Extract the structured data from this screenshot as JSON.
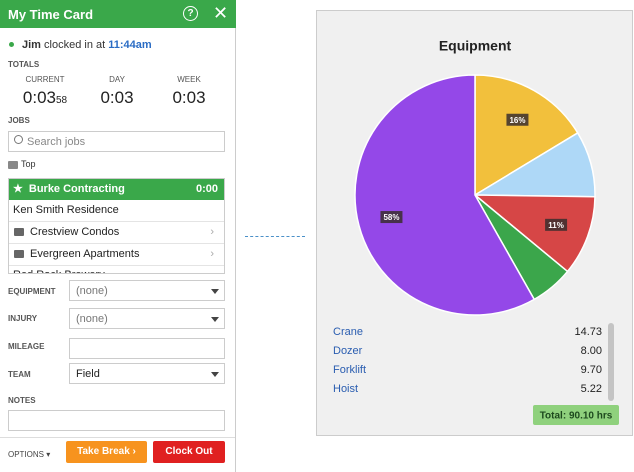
{
  "header": {
    "title": "My Time Card"
  },
  "status": {
    "user": "Jim",
    "text": "clocked in at",
    "time": "11:44am"
  },
  "totals": {
    "label": "TOTALS",
    "columns": [
      {
        "label": "CURRENT",
        "value": "0:03",
        "seconds": "58"
      },
      {
        "label": "DAY",
        "value": "0:03"
      },
      {
        "label": "WEEK",
        "value": "0:03"
      }
    ]
  },
  "jobs": {
    "label": "JOBS",
    "search_placeholder": "Search jobs",
    "folder": "Top",
    "active": {
      "name": "Burke Contracting",
      "time": "0:00"
    },
    "items": [
      {
        "name": "Ken Smith Residence"
      },
      {
        "name": "Crestview Condos"
      },
      {
        "name": "Evergreen Apartments"
      },
      {
        "name": "Red Rock Brewery"
      }
    ]
  },
  "fields": [
    {
      "label": "EQUIPMENT",
      "value": "(none)"
    },
    {
      "label": "INJURY",
      "value": "(none)"
    },
    {
      "label": "MILEAGE"
    },
    {
      "label": "TEAM",
      "value": "Field"
    },
    {
      "label": "NOTES"
    }
  ],
  "footer": {
    "options": "OPTIONS",
    "take_break": "Take Break ›",
    "clock_out": "Clock Out"
  },
  "chart_data": {
    "type": "pie",
    "title": "Equipment",
    "categories": [
      "Crane",
      "Dozer",
      "Forklift",
      "Hoist",
      null
    ],
    "values": [
      14.73,
      8,
      9.7,
      5.22,
      52.45
    ],
    "value_labels": [
      "14.73",
      "8.00",
      "9.70",
      "5.22",
      null
    ],
    "percent_labels": [
      "16%",
      null,
      "11%",
      null,
      "58%"
    ],
    "colors": [
      "#f2c03c",
      "#aed8f7",
      "#d64646",
      "#3ba64b",
      "#9448e8"
    ],
    "total_label": "Total: 90.10 hrs"
  }
}
